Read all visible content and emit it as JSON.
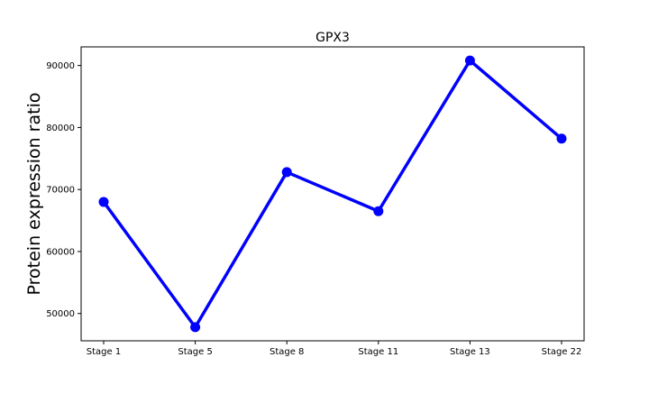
{
  "chart_data": {
    "type": "line",
    "title": "GPX3",
    "xlabel": "",
    "ylabel": "Protein expression ratio",
    "categories": [
      "Stage 1",
      "Stage 5",
      "Stage 8",
      "Stage 11",
      "Stage 13",
      "Stage 22"
    ],
    "series": [
      {
        "values": [
          68000,
          47800,
          72800,
          66500,
          90800,
          78200
        ],
        "color": "#0000ff"
      }
    ],
    "ylim": [
      45600,
      93000
    ],
    "yticks": [
      50000,
      60000,
      70000,
      80000,
      90000
    ],
    "grid": false,
    "legend": "none"
  }
}
